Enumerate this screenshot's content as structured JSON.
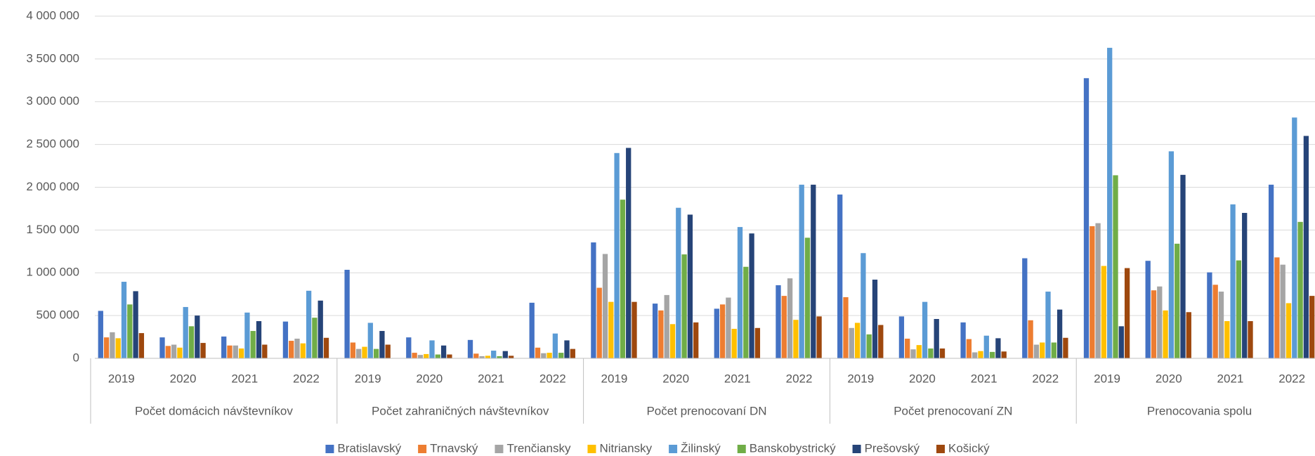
{
  "chart_data": {
    "type": "bar",
    "groups": [
      "Počet domácich návštevníkov",
      "Počet zahraničných návštevníkov",
      "Počet prenocovaní  DN",
      "Počet prenocovaní ZN",
      "Prenocovania spolu"
    ],
    "categories": [
      "2019",
      "2020",
      "2021",
      "2022",
      "2019",
      "2020",
      "2021",
      "2022",
      "2019",
      "2020",
      "2021",
      "2022",
      "2019",
      "2020",
      "2021",
      "2022",
      "2019",
      "2020",
      "2021",
      "2022"
    ],
    "series": [
      {
        "name": "Bratislavský",
        "color": "#4472c4",
        "values": [
          555000,
          245000,
          255000,
          430000,
          1035000,
          245000,
          215000,
          650000,
          1355000,
          640000,
          580000,
          855000,
          1915000,
          490000,
          420000,
          1170000,
          3275000,
          1140000,
          1005000,
          2030000
        ]
      },
      {
        "name": "Trnavský",
        "color": "#ed7d31",
        "values": [
          245000,
          145000,
          150000,
          205000,
          185000,
          65000,
          55000,
          125000,
          825000,
          560000,
          630000,
          730000,
          715000,
          230000,
          225000,
          445000,
          1545000,
          795000,
          860000,
          1180000
        ]
      },
      {
        "name": "Trenčiansky",
        "color": "#a5a5a5",
        "values": [
          305000,
          160000,
          150000,
          230000,
          110000,
          40000,
          25000,
          60000,
          1220000,
          740000,
          710000,
          935000,
          355000,
          105000,
          70000,
          160000,
          1580000,
          840000,
          780000,
          1095000
        ]
      },
      {
        "name": "Nitriansky",
        "color": "#ffc000",
        "values": [
          235000,
          125000,
          115000,
          175000,
          135000,
          50000,
          30000,
          65000,
          660000,
          400000,
          345000,
          450000,
          415000,
          155000,
          85000,
          185000,
          1080000,
          560000,
          435000,
          645000
        ]
      },
      {
        "name": "Žilinský",
        "color": "#5b9bd5",
        "values": [
          895000,
          600000,
          535000,
          790000,
          415000,
          210000,
          90000,
          290000,
          2400000,
          1760000,
          1535000,
          2030000,
          1230000,
          660000,
          265000,
          780000,
          3630000,
          2420000,
          1800000,
          2815000
        ]
      },
      {
        "name": "Banskobystrický",
        "color": "#70ad47",
        "values": [
          630000,
          375000,
          320000,
          475000,
          110000,
          45000,
          25000,
          65000,
          1855000,
          1215000,
          1070000,
          1410000,
          280000,
          115000,
          75000,
          185000,
          2140000,
          1340000,
          1145000,
          1595000
        ]
      },
      {
        "name": "Prešovský",
        "color": "#264478",
        "values": [
          785000,
          500000,
          435000,
          675000,
          320000,
          150000,
          85000,
          210000,
          2460000,
          1680000,
          1460000,
          2030000,
          920000,
          460000,
          235000,
          570000,
          375000,
          2145000,
          1700000,
          2600000
        ]
      },
      {
        "name": "Košický",
        "color": "#9e480e",
        "values": [
          295000,
          180000,
          160000,
          240000,
          160000,
          45000,
          30000,
          110000,
          660000,
          420000,
          355000,
          490000,
          390000,
          115000,
          80000,
          240000,
          1055000,
          540000,
          435000,
          730000
        ]
      }
    ],
    "ylim": [
      0,
      4000000
    ],
    "yticks": [
      0,
      {
        "value": 500000,
        "label": "500 000"
      },
      {
        "value": 1000000,
        "label": "1 000 000"
      },
      {
        "value": 1500000,
        "label": "1 500 000"
      },
      {
        "value": 2000000,
        "label": "2 000 000"
      },
      {
        "value": 2500000,
        "label": "2 500 000"
      },
      {
        "value": 3000000,
        "label": "3 000 000"
      },
      {
        "value": 3500000,
        "label": "3 500 000"
      },
      {
        "value": 4000000,
        "label": "4 000 000"
      }
    ],
    "grid": true,
    "legend": "bottom"
  }
}
